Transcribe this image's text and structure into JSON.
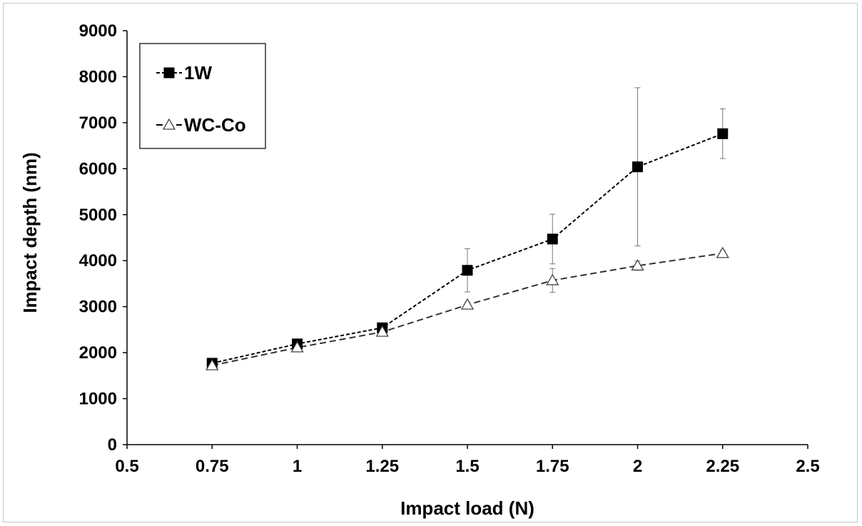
{
  "chart_data": {
    "type": "line",
    "xlabel": "Impact load (N)",
    "ylabel": "Impact depth (nm)",
    "xlim": [
      0.5,
      2.5
    ],
    "ylim": [
      0,
      9000
    ],
    "x_ticks": [
      "0.5",
      "0.75",
      "1",
      "1.25",
      "1.5",
      "1.75",
      "2",
      "2.25",
      "2.5"
    ],
    "y_ticks": [
      "0",
      "1000",
      "2000",
      "3000",
      "4000",
      "5000",
      "6000",
      "7000",
      "8000",
      "9000"
    ],
    "x_tick_values": [
      0.5,
      0.75,
      1,
      1.25,
      1.5,
      1.75,
      2,
      2.25,
      2.5
    ],
    "y_tick_values": [
      0,
      1000,
      2000,
      3000,
      4000,
      5000,
      6000,
      7000,
      8000,
      9000
    ],
    "grid": false,
    "legend_position": "top-left",
    "x": [
      0.75,
      1,
      1.25,
      1.5,
      1.75,
      2,
      2.25
    ],
    "series": [
      {
        "name": "1W",
        "marker": "filled-square",
        "line_style": "dashed",
        "color": "#000000",
        "values": [
          1770,
          2190,
          2540,
          3790,
          4470,
          6040,
          6760
        ],
        "error": [
          40,
          40,
          60,
          470,
          540,
          1720,
          540
        ]
      },
      {
        "name": "WC-Co",
        "marker": "open-triangle",
        "line_style": "dashed",
        "color": "#000000",
        "values": [
          1720,
          2110,
          2450,
          3040,
          3570,
          3890,
          4160
        ],
        "error": [
          30,
          40,
          90,
          60,
          260,
          100,
          60
        ]
      }
    ]
  }
}
